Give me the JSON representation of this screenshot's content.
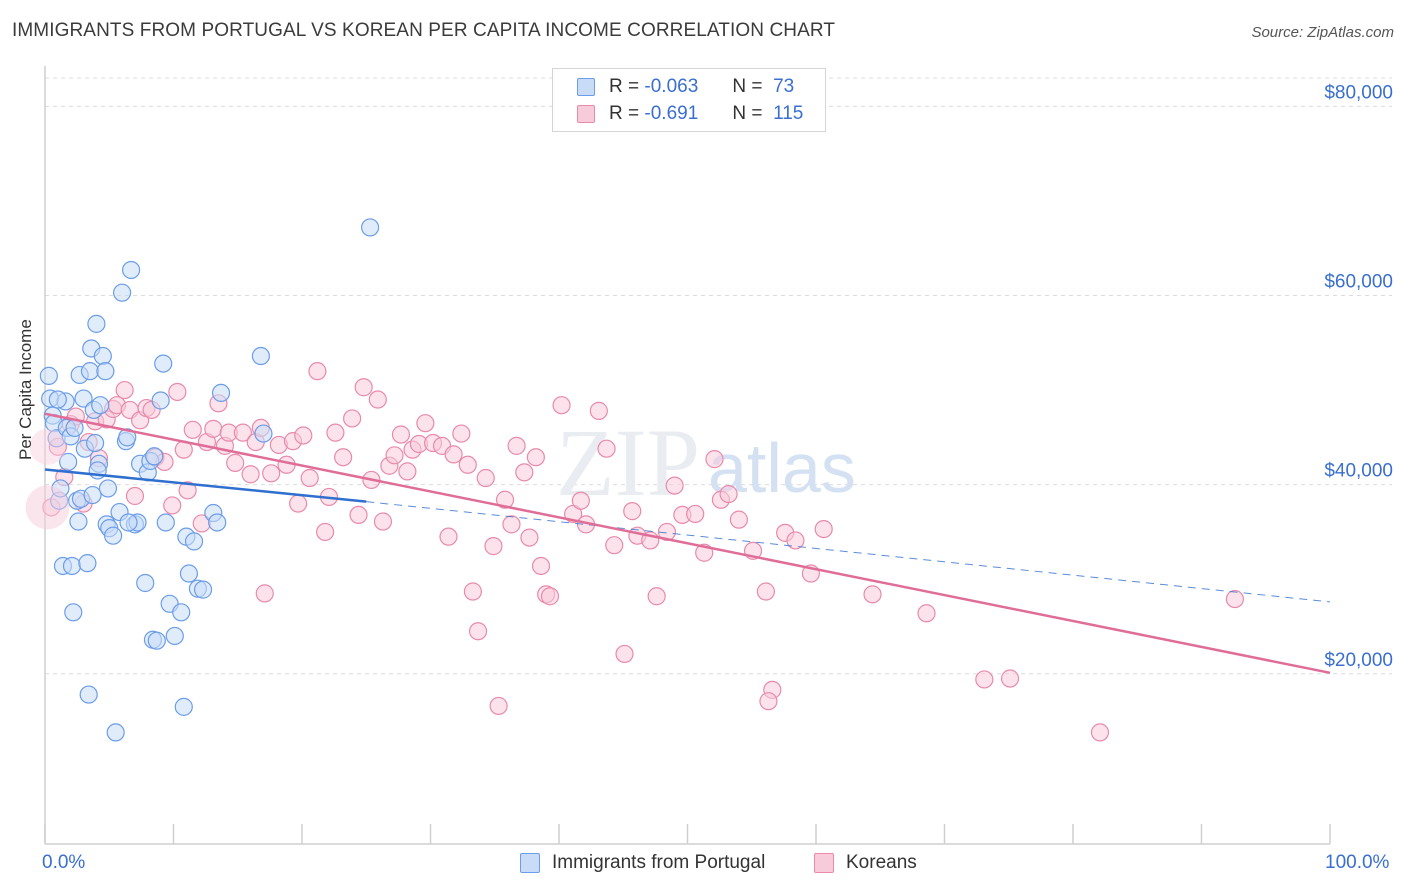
{
  "title": "IMMIGRANTS FROM PORTUGAL VS KOREAN PER CAPITA INCOME CORRELATION CHART",
  "source": "Source: ZipAtlas.com",
  "colors": {
    "blue": "#6b9de8",
    "blue_fill": "#c9dcf7",
    "blue_line": "#2f6fcf",
    "pink": "#e98aab",
    "pink_fill": "#f8cbdb",
    "pink_line": "#e06d97",
    "axis_text": "#3a6fd0"
  },
  "legend": {
    "r_label": "R =",
    "n_label": "N =",
    "rows": [
      {
        "series": "Immigrants from Portugal",
        "r": "-0.063",
        "n": "73"
      },
      {
        "series": "Koreans",
        "r": "-0.691",
        "n": "115"
      }
    ]
  },
  "x_axis": {
    "min_label": "0.0%",
    "max_label": "100.0%"
  },
  "y_axis": {
    "title": "Per Capita Income",
    "ticks": [
      "$20,000",
      "$40,000",
      "$60,000",
      "$80,000"
    ]
  },
  "watermark": {
    "zip": "ZIP",
    "atlas": "atlas"
  },
  "chart_data": {
    "type": "scatter",
    "title": "IMMIGRANTS FROM PORTUGAL VS KOREAN PER CAPITA INCOME CORRELATION CHART",
    "xlabel": "",
    "ylabel": "Per Capita Income",
    "xlim": [
      0,
      100
    ],
    "ylim": [
      2000,
      83000
    ],
    "yticks": [
      20000,
      40000,
      60000,
      80000
    ],
    "series": [
      {
        "name": "Immigrants from Portugal",
        "r": -0.063,
        "n": 73,
        "trend": {
          "x": [
            0,
            25
          ],
          "y": [
            41600,
            38200
          ],
          "dashed_to": {
            "x": 100,
            "y": 27600
          }
        },
        "points": [
          [
            0.3,
            51500
          ],
          [
            0.4,
            49100
          ],
          [
            0.6,
            47300
          ],
          [
            0.7,
            46500
          ],
          [
            0.9,
            44900
          ],
          [
            1.1,
            38300
          ],
          [
            1.2,
            39600
          ],
          [
            1.4,
            31400
          ],
          [
            1.6,
            48800
          ],
          [
            1.7,
            46000
          ],
          [
            1.8,
            42400
          ],
          [
            2.0,
            45100
          ],
          [
            2.1,
            31400
          ],
          [
            2.2,
            26500
          ],
          [
            2.5,
            38300
          ],
          [
            2.6,
            36100
          ],
          [
            2.7,
            51600
          ],
          [
            2.8,
            38500
          ],
          [
            3.0,
            49100
          ],
          [
            3.1,
            43800
          ],
          [
            3.3,
            31700
          ],
          [
            3.4,
            17800
          ],
          [
            3.5,
            52000
          ],
          [
            3.6,
            54400
          ],
          [
            3.7,
            38900
          ],
          [
            3.8,
            47900
          ],
          [
            3.9,
            44400
          ],
          [
            4.0,
            57000
          ],
          [
            4.2,
            42200
          ],
          [
            4.3,
            48400
          ],
          [
            4.5,
            53600
          ],
          [
            4.7,
            52000
          ],
          [
            4.8,
            35800
          ],
          [
            4.9,
            39600
          ],
          [
            5.0,
            35400
          ],
          [
            5.3,
            34600
          ],
          [
            5.5,
            13800
          ],
          [
            5.8,
            37100
          ],
          [
            6.0,
            60300
          ],
          [
            6.3,
            44600
          ],
          [
            6.4,
            45000
          ],
          [
            6.7,
            62700
          ],
          [
            7.0,
            35800
          ],
          [
            7.2,
            36000
          ],
          [
            7.4,
            42200
          ],
          [
            7.8,
            29600
          ],
          [
            8.0,
            41300
          ],
          [
            8.2,
            42500
          ],
          [
            8.4,
            23600
          ],
          [
            8.7,
            23500
          ],
          [
            9.0,
            48900
          ],
          [
            9.2,
            52800
          ],
          [
            9.4,
            36000
          ],
          [
            9.7,
            27400
          ],
          [
            10.1,
            24000
          ],
          [
            10.6,
            26500
          ],
          [
            10.8,
            16500
          ],
          [
            11.0,
            34500
          ],
          [
            11.2,
            30600
          ],
          [
            11.6,
            34000
          ],
          [
            11.9,
            29000
          ],
          [
            12.3,
            28900
          ],
          [
            13.1,
            37000
          ],
          [
            13.4,
            36000
          ],
          [
            13.7,
            49700
          ],
          [
            16.8,
            53600
          ],
          [
            17.0,
            45400
          ],
          [
            25.3,
            67200
          ],
          [
            8.5,
            43000
          ],
          [
            6.5,
            36000
          ],
          [
            2.3,
            46000
          ],
          [
            1.0,
            49000
          ],
          [
            4.1,
            41500
          ]
        ]
      },
      {
        "name": "Koreans",
        "r": -0.691,
        "n": 115,
        "trend": {
          "x": [
            0,
            100
          ],
          "y": [
            47500,
            20100
          ]
        },
        "points": [
          [
            0.5,
            37600
          ],
          [
            1.0,
            44000
          ],
          [
            1.5,
            40800
          ],
          [
            2.0,
            46400
          ],
          [
            2.4,
            47200
          ],
          [
            3.0,
            38000
          ],
          [
            3.4,
            44500
          ],
          [
            3.9,
            46700
          ],
          [
            4.2,
            42800
          ],
          [
            4.8,
            46900
          ],
          [
            5.3,
            48000
          ],
          [
            5.6,
            48400
          ],
          [
            6.2,
            50000
          ],
          [
            6.6,
            47900
          ],
          [
            7.0,
            38800
          ],
          [
            7.4,
            46800
          ],
          [
            7.9,
            48100
          ],
          [
            8.3,
            47900
          ],
          [
            8.6,
            42900
          ],
          [
            9.3,
            42400
          ],
          [
            9.9,
            37800
          ],
          [
            10.3,
            49800
          ],
          [
            10.8,
            43700
          ],
          [
            11.1,
            39400
          ],
          [
            11.5,
            45800
          ],
          [
            12.2,
            35900
          ],
          [
            12.6,
            44500
          ],
          [
            13.1,
            45900
          ],
          [
            13.5,
            48600
          ],
          [
            14.0,
            44100
          ],
          [
            14.3,
            45500
          ],
          [
            14.8,
            42300
          ],
          [
            15.4,
            45500
          ],
          [
            16.0,
            41100
          ],
          [
            16.4,
            44500
          ],
          [
            16.8,
            46000
          ],
          [
            17.1,
            28500
          ],
          [
            17.6,
            41200
          ],
          [
            18.2,
            44200
          ],
          [
            18.8,
            42100
          ],
          [
            19.3,
            44600
          ],
          [
            19.7,
            38000
          ],
          [
            20.1,
            45200
          ],
          [
            20.6,
            40700
          ],
          [
            21.2,
            52000
          ],
          [
            21.8,
            35000
          ],
          [
            22.1,
            38700
          ],
          [
            22.6,
            45500
          ],
          [
            23.2,
            42900
          ],
          [
            23.9,
            47000
          ],
          [
            24.4,
            36800
          ],
          [
            24.8,
            50300
          ],
          [
            25.4,
            40500
          ],
          [
            25.9,
            49000
          ],
          [
            26.3,
            36100
          ],
          [
            26.8,
            42000
          ],
          [
            27.2,
            43100
          ],
          [
            27.7,
            45300
          ],
          [
            28.2,
            41400
          ],
          [
            28.6,
            43700
          ],
          [
            29.1,
            44300
          ],
          [
            29.6,
            46500
          ],
          [
            30.2,
            44400
          ],
          [
            30.9,
            44100
          ],
          [
            31.4,
            34500
          ],
          [
            31.8,
            43200
          ],
          [
            32.4,
            45400
          ],
          [
            32.9,
            42100
          ],
          [
            33.3,
            28700
          ],
          [
            33.7,
            24500
          ],
          [
            34.3,
            40700
          ],
          [
            34.9,
            33500
          ],
          [
            35.3,
            16600
          ],
          [
            35.8,
            38400
          ],
          [
            36.3,
            35800
          ],
          [
            36.7,
            44100
          ],
          [
            37.3,
            41300
          ],
          [
            37.7,
            34400
          ],
          [
            38.2,
            42900
          ],
          [
            38.6,
            31400
          ],
          [
            39.0,
            28400
          ],
          [
            39.3,
            28200
          ],
          [
            40.2,
            48400
          ],
          [
            41.1,
            36900
          ],
          [
            41.7,
            38300
          ],
          [
            42.1,
            35800
          ],
          [
            43.1,
            47800
          ],
          [
            43.7,
            43800
          ],
          [
            44.3,
            33600
          ],
          [
            45.1,
            22100
          ],
          [
            45.7,
            37200
          ],
          [
            46.1,
            34600
          ],
          [
            47.1,
            34100
          ],
          [
            47.6,
            28200
          ],
          [
            48.4,
            35000
          ],
          [
            49.0,
            39900
          ],
          [
            49.6,
            36800
          ],
          [
            50.6,
            36900
          ],
          [
            51.3,
            32800
          ],
          [
            52.1,
            42700
          ],
          [
            52.6,
            38400
          ],
          [
            53.2,
            39000
          ],
          [
            54.0,
            36300
          ],
          [
            55.1,
            33000
          ],
          [
            56.1,
            28700
          ],
          [
            56.6,
            18300
          ],
          [
            56.3,
            17100
          ],
          [
            57.6,
            34900
          ],
          [
            58.4,
            34100
          ],
          [
            59.6,
            30600
          ],
          [
            60.6,
            35300
          ],
          [
            64.4,
            28400
          ],
          [
            68.6,
            26400
          ],
          [
            73.1,
            19400
          ],
          [
            75.1,
            19500
          ],
          [
            82.1,
            13800
          ],
          [
            92.6,
            27900
          ]
        ]
      }
    ]
  }
}
